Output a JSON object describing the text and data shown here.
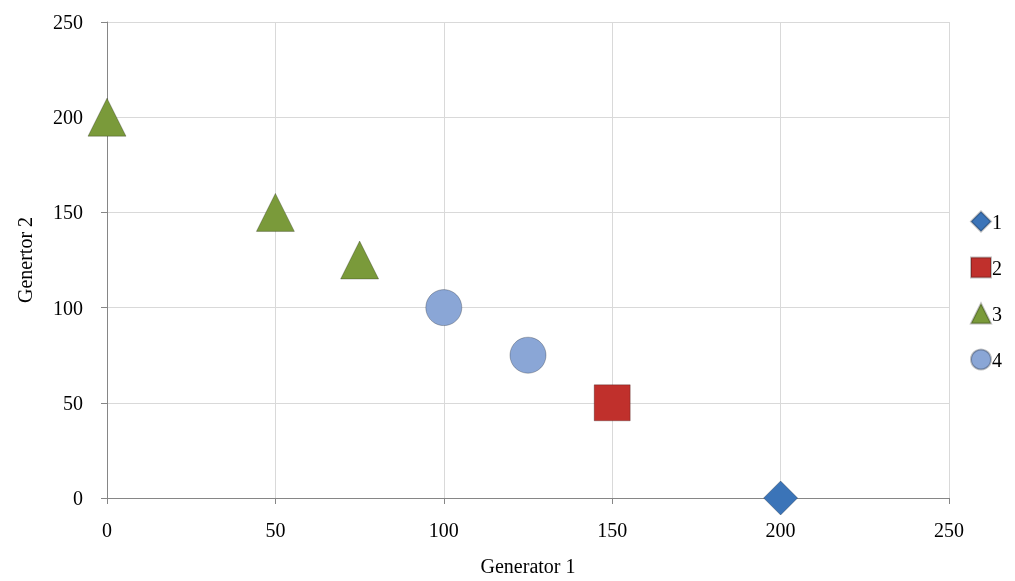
{
  "chart_data": {
    "type": "scatter",
    "xlabel": "Generator 1",
    "ylabel": "Genertor 2",
    "xlim": [
      0,
      250
    ],
    "ylim": [
      0,
      250
    ],
    "xticks": [
      0,
      50,
      100,
      150,
      200,
      250
    ],
    "yticks": [
      0,
      50,
      100,
      150,
      200,
      250
    ],
    "grid": true,
    "legend": "right",
    "series": [
      {
        "name": "1",
        "color": "#3b74b8",
        "marker": "diamond",
        "x": [
          200
        ],
        "values": [
          0
        ]
      },
      {
        "name": "2",
        "color": "#c0302c",
        "marker": "square",
        "x": [
          150
        ],
        "values": [
          50
        ]
      },
      {
        "name": "3",
        "color": "#7a9a3a",
        "marker": "triangle",
        "x": [
          0,
          50,
          75
        ],
        "values": [
          200,
          150,
          125
        ]
      },
      {
        "name": "4",
        "color": "#8aa6d6",
        "marker": "circle",
        "x": [
          100,
          125
        ],
        "values": [
          100,
          75
        ]
      }
    ]
  }
}
